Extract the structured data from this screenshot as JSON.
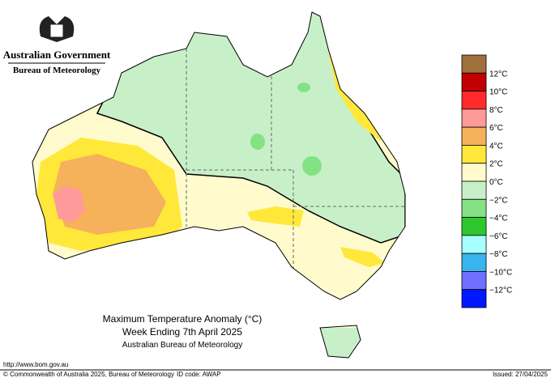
{
  "header": {
    "government": "Australian Government",
    "agency": "Bureau of Meteorology"
  },
  "title": {
    "line1": "Maximum Temperature Anomaly (°C)",
    "line2": "Week Ending 7th April 2025",
    "line3": "Australian Bureau of Meteorology"
  },
  "legend": {
    "colors": [
      "#a0703c",
      "#c00000",
      "#ff2b2b",
      "#ff9a9a",
      "#f5b25a",
      "#ffe83a",
      "#fffbcc",
      "#c8f0c8",
      "#84e284",
      "#2ec82e",
      "#a8ffff",
      "#38b4f0",
      "#7070ff",
      "#0018ff"
    ],
    "labels": [
      "12°C",
      "10°C",
      "8°C",
      "6°C",
      "4°C",
      "2°C",
      "0°C",
      "−2°C",
      "−4°C",
      "−6°C",
      "−8°C",
      "−10°C",
      "−12°C"
    ]
  },
  "footer": {
    "url": "http://www.bom.gov.au",
    "copyright": "© Commonwealth of Australia 2025, Bureau of Meteorology",
    "id_code": "ID code: AWAP",
    "issued": "Issued: 27/04/2025"
  }
}
